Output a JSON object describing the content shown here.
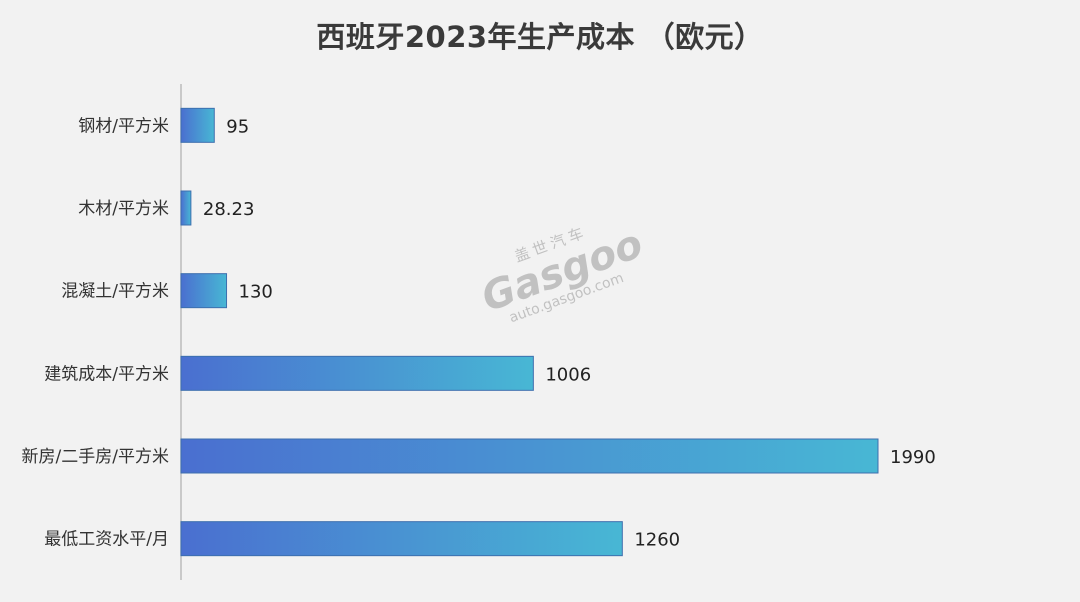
{
  "chart_data": {
    "type": "bar",
    "orientation": "horizontal",
    "title": "西班牙2023年生产成本 （欧元）",
    "categories": [
      "钢材/平方米",
      "木材/平方米",
      "混凝土/平方米",
      "建筑成本/平方米",
      "新房/二手房/平方米",
      "最低工资水平/月"
    ],
    "values": [
      95,
      28.23,
      130,
      1006,
      1990,
      1260
    ],
    "value_labels": [
      "95",
      "28.23",
      "130",
      "1006",
      "1990",
      "1260"
    ],
    "xlim": [
      0,
      1990
    ],
    "grid": false,
    "legend": "none",
    "colors": {
      "bar_start": "#4a6fd0",
      "bar_end": "#48b7d4",
      "axis": "#bbbbbb"
    }
  },
  "watermark": {
    "cn": "盖世汽车",
    "logo": "Gasgoo",
    "url": "auto.gasgoo.com"
  }
}
